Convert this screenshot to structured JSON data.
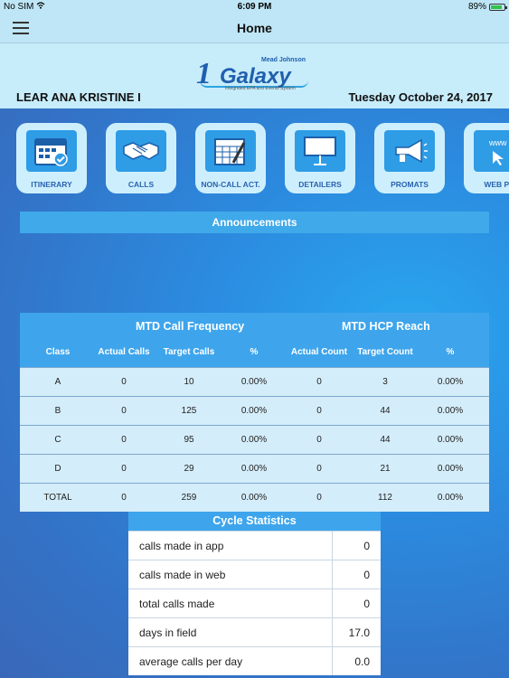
{
  "status_bar": {
    "carrier": "No SIM",
    "time": "6:09 PM",
    "battery": "89%",
    "battery_level": 0.89
  },
  "nav": {
    "title": "Home"
  },
  "header": {
    "logo_text": "1Galaxy",
    "logo_brand": "Mead Johnson",
    "logo_tagline": "Integrated EPA and Events System",
    "user_name": "LEAR ANA KRISTINE I",
    "date": "Tuesday October 24, 2017"
  },
  "tiles": [
    {
      "label": "ITINERARY",
      "icon": "calendar-check-icon"
    },
    {
      "label": "CALLS",
      "icon": "handshake-icon"
    },
    {
      "label": "NON-CALL ACT.",
      "icon": "calendar-pen-icon"
    },
    {
      "label": "DETAILERS",
      "icon": "presentation-board-icon"
    },
    {
      "label": "PROMATS",
      "icon": "megaphone-icon"
    },
    {
      "label": "WEB PA",
      "icon": "web-pointer-icon"
    }
  ],
  "announcements": {
    "title": "Announcements"
  },
  "frequency_table": {
    "group1": "MTD Call Frequency",
    "group2": "MTD HCP Reach",
    "columns": [
      "Class",
      "Actual Calls",
      "Target Calls",
      "%",
      "Actual Count",
      "Target Count",
      "%"
    ],
    "rows": [
      [
        "A",
        "0",
        "10",
        "0.00%",
        "0",
        "3",
        "0.00%"
      ],
      [
        "B",
        "0",
        "125",
        "0.00%",
        "0",
        "44",
        "0.00%"
      ],
      [
        "C",
        "0",
        "95",
        "0.00%",
        "0",
        "44",
        "0.00%"
      ],
      [
        "D",
        "0",
        "29",
        "0.00%",
        "0",
        "21",
        "0.00%"
      ],
      [
        "TOTAL",
        "0",
        "259",
        "0.00%",
        "0",
        "112",
        "0.00%"
      ]
    ]
  },
  "cycle_statistics": {
    "title": "Cycle Statistics",
    "rows": [
      {
        "label": "calls made in app",
        "value": "0"
      },
      {
        "label": "calls made in web",
        "value": "0"
      },
      {
        "label": "total calls made",
        "value": "0"
      },
      {
        "label": "days in field",
        "value": "17.0"
      },
      {
        "label": "average calls per day",
        "value": "0.0"
      }
    ]
  }
}
